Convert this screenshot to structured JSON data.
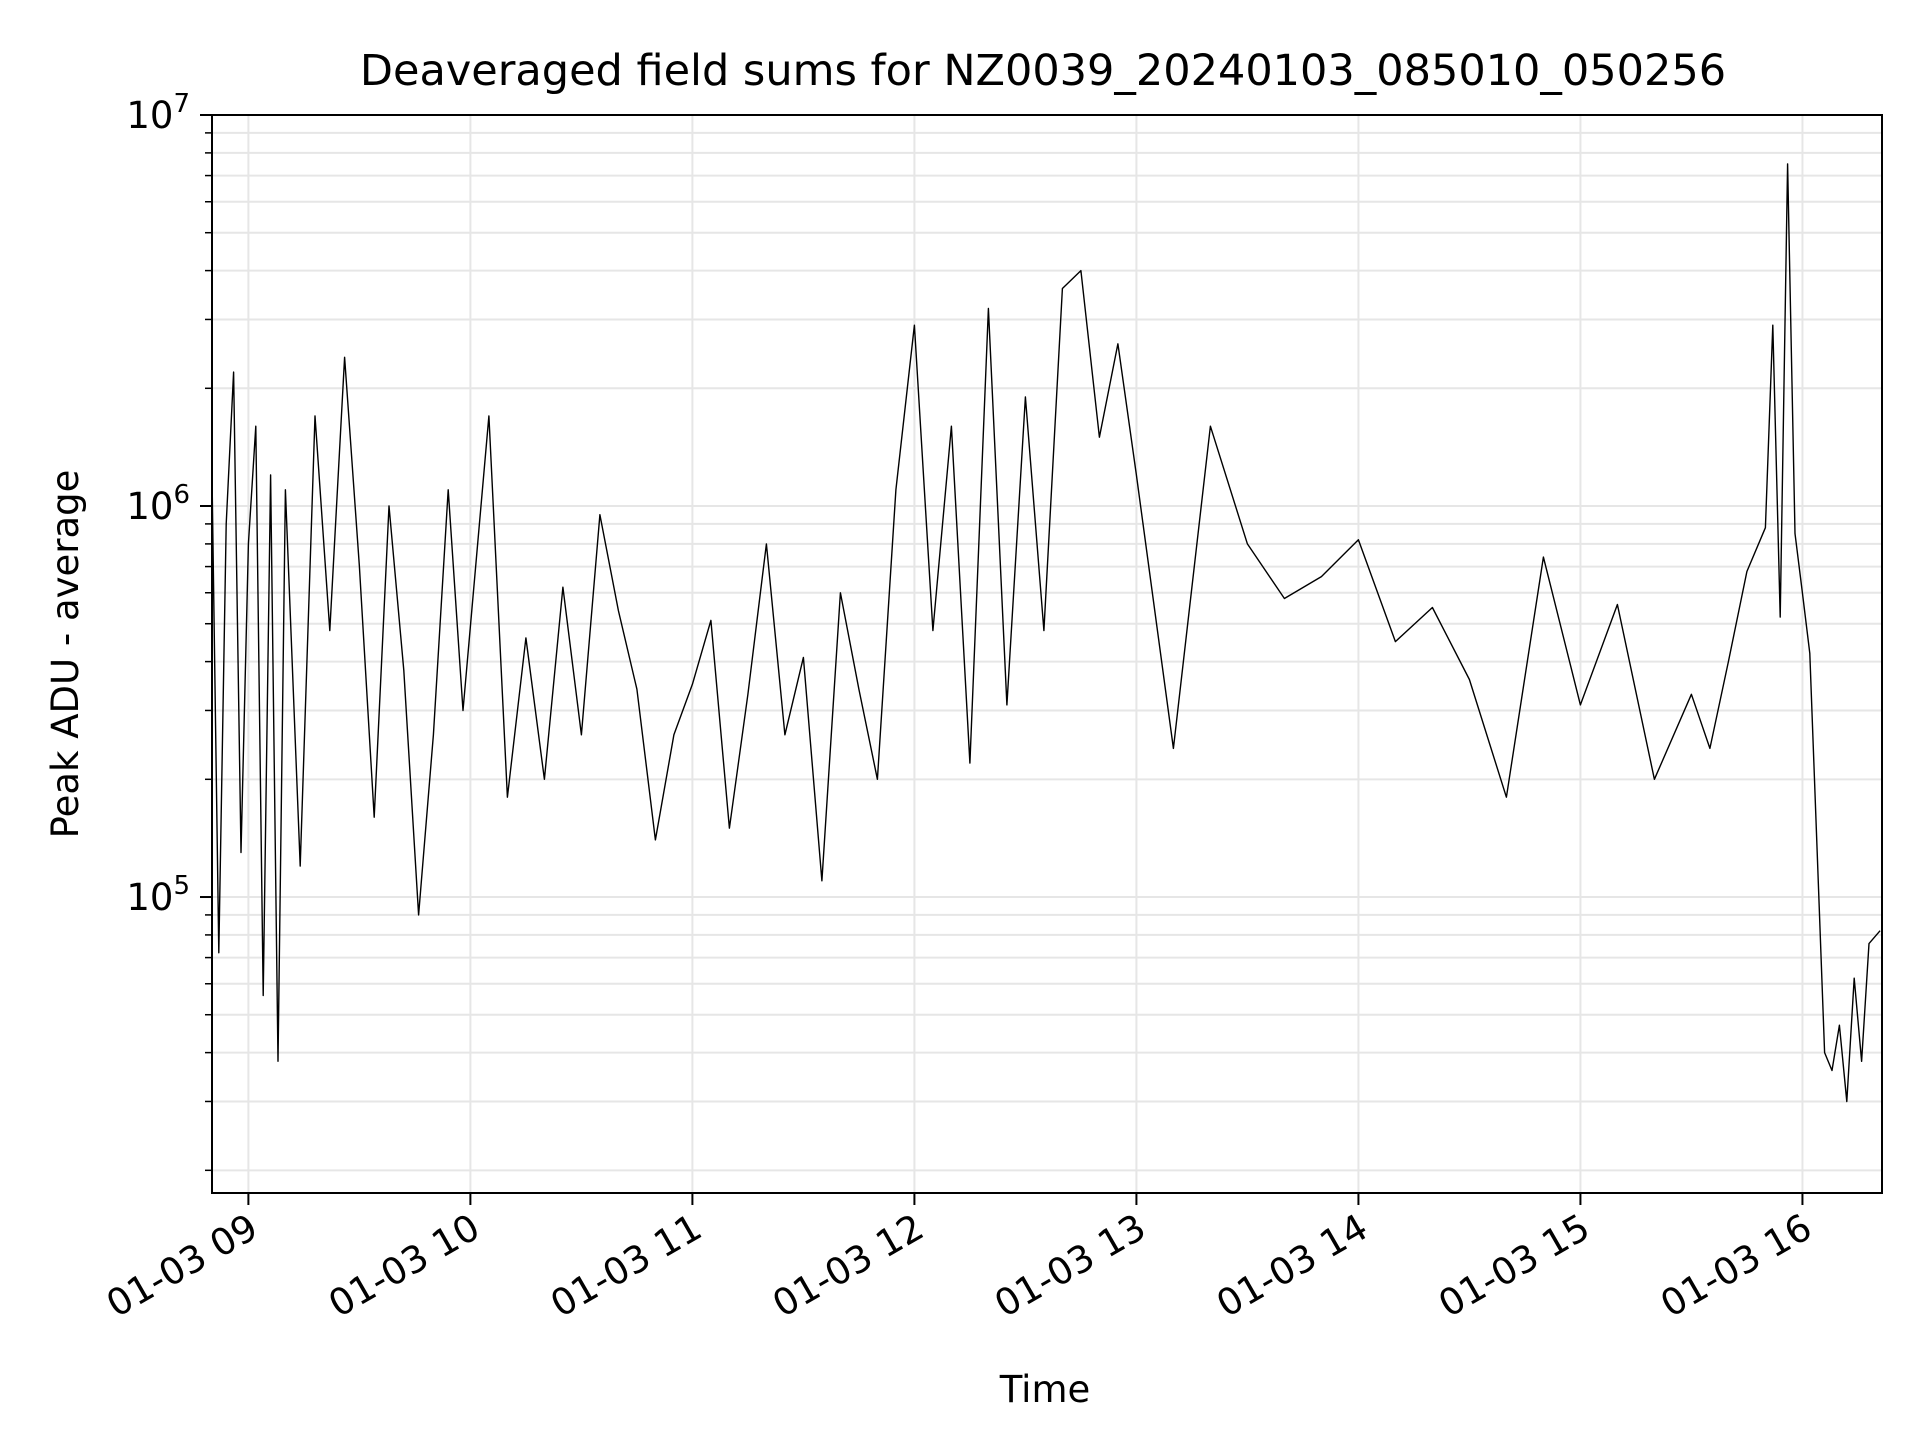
{
  "chart_data": {
    "type": "line",
    "title": "Deaveraged field sums for NZ0039_20240103_085010_050256",
    "xlabel": "Time",
    "ylabel": "Peak ADU - average",
    "x_type": "datetime",
    "xlim": [
      "2024-01-03T08:50:10",
      "2024-01-03T16:21:30"
    ],
    "ylim": [
      17500,
      10000000
    ],
    "y_scale": "log",
    "grid": true,
    "line_color": "#000000",
    "grid_color": "#e6e6e6",
    "x_ticks": [
      {
        "value": "2024-01-03T09:00:00",
        "label": "01-03 09"
      },
      {
        "value": "2024-01-03T10:00:00",
        "label": "01-03 10"
      },
      {
        "value": "2024-01-03T11:00:00",
        "label": "01-03 11"
      },
      {
        "value": "2024-01-03T12:00:00",
        "label": "01-03 12"
      },
      {
        "value": "2024-01-03T13:00:00",
        "label": "01-03 13"
      },
      {
        "value": "2024-01-03T14:00:00",
        "label": "01-03 14"
      },
      {
        "value": "2024-01-03T15:00:00",
        "label": "01-03 15"
      },
      {
        "value": "2024-01-03T16:00:00",
        "label": "01-03 16"
      }
    ],
    "y_ticks": [
      {
        "value": 100000,
        "base": "10",
        "exp": "5"
      },
      {
        "value": 1000000,
        "base": "10",
        "exp": "6"
      },
      {
        "value": 10000000,
        "base": "10",
        "exp": "7"
      }
    ],
    "series": [
      {
        "x": [
          "2024-01-03T08:50:10",
          "2024-01-03T08:52:00",
          "2024-01-03T08:54:00",
          "2024-01-03T08:56:00",
          "2024-01-03T08:58:00",
          "2024-01-03T09:00:00",
          "2024-01-03T09:02:00",
          "2024-01-03T09:04:00",
          "2024-01-03T09:06:00",
          "2024-01-03T09:08:00",
          "2024-01-03T09:10:00",
          "2024-01-03T09:14:00",
          "2024-01-03T09:18:00",
          "2024-01-03T09:22:00",
          "2024-01-03T09:26:00",
          "2024-01-03T09:30:00",
          "2024-01-03T09:34:00",
          "2024-01-03T09:38:00",
          "2024-01-03T09:42:00",
          "2024-01-03T09:46:00",
          "2024-01-03T09:50:00",
          "2024-01-03T09:54:00",
          "2024-01-03T09:58:00",
          "2024-01-03T10:05:00",
          "2024-01-03T10:10:00",
          "2024-01-03T10:15:00",
          "2024-01-03T10:20:00",
          "2024-01-03T10:25:00",
          "2024-01-03T10:30:00",
          "2024-01-03T10:35:00",
          "2024-01-03T10:40:00",
          "2024-01-03T10:45:00",
          "2024-01-03T10:50:00",
          "2024-01-03T10:55:00",
          "2024-01-03T11:00:00",
          "2024-01-03T11:05:00",
          "2024-01-03T11:10:00",
          "2024-01-03T11:15:00",
          "2024-01-03T11:20:00",
          "2024-01-03T11:25:00",
          "2024-01-03T11:30:00",
          "2024-01-03T11:35:00",
          "2024-01-03T11:40:00",
          "2024-01-03T11:45:00",
          "2024-01-03T11:50:00",
          "2024-01-03T11:55:00",
          "2024-01-03T12:00:00",
          "2024-01-03T12:05:00",
          "2024-01-03T12:10:00",
          "2024-01-03T12:15:00",
          "2024-01-03T12:20:00",
          "2024-01-03T12:25:00",
          "2024-01-03T12:30:00",
          "2024-01-03T12:35:00",
          "2024-01-03T12:40:00",
          "2024-01-03T12:45:00",
          "2024-01-03T12:50:00",
          "2024-01-03T12:55:00",
          "2024-01-03T13:00:00",
          "2024-01-03T13:10:00",
          "2024-01-03T13:20:00",
          "2024-01-03T13:30:00",
          "2024-01-03T13:40:00",
          "2024-01-03T13:50:00",
          "2024-01-03T14:00:00",
          "2024-01-03T14:10:00",
          "2024-01-03T14:20:00",
          "2024-01-03T14:30:00",
          "2024-01-03T14:40:00",
          "2024-01-03T14:50:00",
          "2024-01-03T15:00:00",
          "2024-01-03T15:10:00",
          "2024-01-03T15:20:00",
          "2024-01-03T15:30:00",
          "2024-01-03T15:35:00",
          "2024-01-03T15:40:00",
          "2024-01-03T15:45:00",
          "2024-01-03T15:50:00",
          "2024-01-03T15:52:00",
          "2024-01-03T15:54:00",
          "2024-01-03T15:56:00",
          "2024-01-03T15:58:00",
          "2024-01-03T16:00:00",
          "2024-01-03T16:02:00",
          "2024-01-03T16:04:00",
          "2024-01-03T16:06:00",
          "2024-01-03T16:08:00",
          "2024-01-03T16:10:00",
          "2024-01-03T16:12:00",
          "2024-01-03T16:14:00",
          "2024-01-03T16:16:00",
          "2024-01-03T16:18:00",
          "2024-01-03T16:21:00"
        ],
        "y": [
          1200000,
          72000,
          900000,
          2200000,
          130000,
          800000,
          1600000,
          56000,
          1200000,
          38000,
          1100000,
          120000,
          1700000,
          480000,
          2400000,
          700000,
          160000,
          1000000,
          380000,
          90000,
          260000,
          1100000,
          300000,
          1700000,
          180000,
          460000,
          200000,
          620000,
          260000,
          950000,
          540000,
          340000,
          140000,
          260000,
          350000,
          510000,
          150000,
          330000,
          800000,
          260000,
          410000,
          110000,
          600000,
          340000,
          200000,
          1100000,
          2900000,
          480000,
          1600000,
          220000,
          3200000,
          310000,
          1900000,
          480000,
          3600000,
          4000000,
          1500000,
          2600000,
          1200000,
          240000,
          1600000,
          800000,
          580000,
          660000,
          820000,
          450000,
          550000,
          360000,
          180000,
          740000,
          310000,
          560000,
          200000,
          330000,
          240000,
          400000,
          680000,
          880000,
          2900000,
          520000,
          7500000,
          850000,
          600000,
          420000,
          130000,
          40000,
          36000,
          47000,
          30000,
          62000,
          38000,
          76000,
          82000
        ]
      }
    ]
  }
}
